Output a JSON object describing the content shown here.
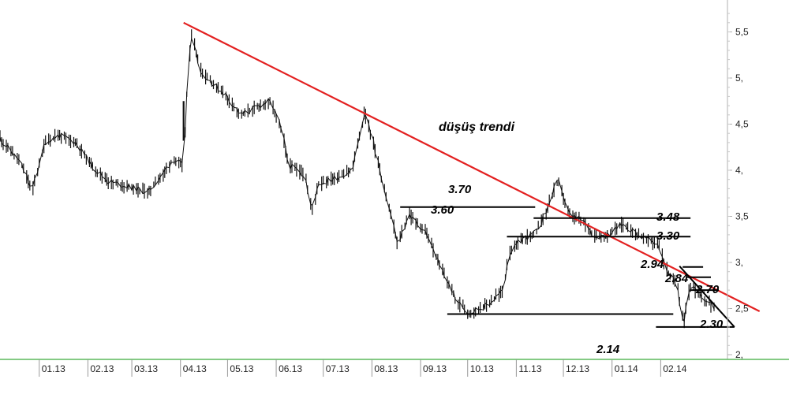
{
  "chart_data": {
    "type": "line",
    "title": "",
    "xlabel": "",
    "ylabel": "",
    "ylim": [
      2.0,
      5.8
    ],
    "y_ticks": [
      "2,",
      "2,5",
      "3,",
      "3,5",
      "4,",
      "4,5",
      "5,",
      "5,5"
    ],
    "y_tick_values": [
      2.0,
      2.5,
      3.0,
      3.5,
      4.0,
      4.5,
      5.0,
      5.5
    ],
    "x_ticks": [
      "01.13",
      "02.13",
      "03.13",
      "04.13",
      "05.13",
      "06.13",
      "07.13",
      "08.13",
      "09.13",
      "10.13",
      "11.13",
      "12.13",
      "01.14",
      "02.14"
    ],
    "x_start": "2012-12-07",
    "x_end": "2014-03-07",
    "series": [
      {
        "values": [
          [
            "2012-12-07",
            4.35
          ],
          [
            "2012-12-20",
            4.1
          ],
          [
            "2012-12-28",
            3.78
          ],
          [
            "2013-01-05",
            4.3
          ],
          [
            "2013-01-14",
            4.38
          ],
          [
            "2013-01-25",
            4.3
          ],
          [
            "2013-02-04",
            4.05
          ],
          [
            "2013-02-14",
            3.88
          ],
          [
            "2013-02-28",
            3.82
          ],
          [
            "2013-03-12",
            3.76
          ],
          [
            "2013-03-22",
            3.98
          ],
          [
            "2013-03-28",
            4.12
          ],
          [
            "2013-04-03",
            4.05
          ],
          [
            "2013-04-05",
            4.58
          ],
          [
            "2013-04-08",
            5.5
          ],
          [
            "2013-04-15",
            5.05
          ],
          [
            "2013-04-30",
            4.82
          ],
          [
            "2013-05-10",
            4.6
          ],
          [
            "2013-05-28",
            4.75
          ],
          [
            "2013-06-03",
            4.55
          ],
          [
            "2013-06-10",
            4.05
          ],
          [
            "2013-06-20",
            3.95
          ],
          [
            "2013-06-24",
            3.55
          ],
          [
            "2013-06-28",
            3.85
          ],
          [
            "2013-07-10",
            3.92
          ],
          [
            "2013-07-20",
            4.0
          ],
          [
            "2013-07-28",
            4.65
          ],
          [
            "2013-08-03",
            4.25
          ],
          [
            "2013-08-12",
            3.6
          ],
          [
            "2013-08-18",
            3.2
          ],
          [
            "2013-08-25",
            3.52
          ],
          [
            "2013-09-05",
            3.32
          ],
          [
            "2013-09-15",
            2.92
          ],
          [
            "2013-09-24",
            2.6
          ],
          [
            "2013-10-02",
            2.45
          ],
          [
            "2013-10-15",
            2.55
          ],
          [
            "2013-10-24",
            2.7
          ],
          [
            "2013-10-28",
            3.1
          ],
          [
            "2013-11-05",
            3.25
          ],
          [
            "2013-11-14",
            3.32
          ],
          [
            "2013-11-22",
            3.62
          ],
          [
            "2013-11-28",
            3.9
          ],
          [
            "2013-12-05",
            3.52
          ],
          [
            "2013-12-14",
            3.45
          ],
          [
            "2013-12-22",
            3.28
          ],
          [
            "2013-12-30",
            3.3
          ],
          [
            "2014-01-08",
            3.42
          ],
          [
            "2014-01-20",
            3.28
          ],
          [
            "2014-01-31",
            3.2
          ],
          [
            "2014-02-05",
            2.92
          ],
          [
            "2014-02-12",
            2.75
          ],
          [
            "2014-02-16",
            2.32
          ],
          [
            "2014-02-20",
            2.75
          ],
          [
            "2014-02-28",
            2.62
          ],
          [
            "2014-03-07",
            2.52
          ]
        ]
      }
    ],
    "annotations": [
      {
        "text": "düşüş trendi"
      },
      {
        "text": "3.70"
      },
      {
        "text": "3.60"
      },
      {
        "text": "3.48"
      },
      {
        "text": "3.30"
      },
      {
        "text": "2.94"
      },
      {
        "text": "2.84"
      },
      {
        "text": "2.70"
      },
      {
        "text": "2.30"
      },
      {
        "text": "2.14"
      }
    ],
    "colors": {
      "trendline": "#e32020",
      "price": "#111111",
      "levels": "#000000",
      "baseline": "#5cb85c",
      "axis": "#b0b0b0"
    },
    "grid": false
  }
}
